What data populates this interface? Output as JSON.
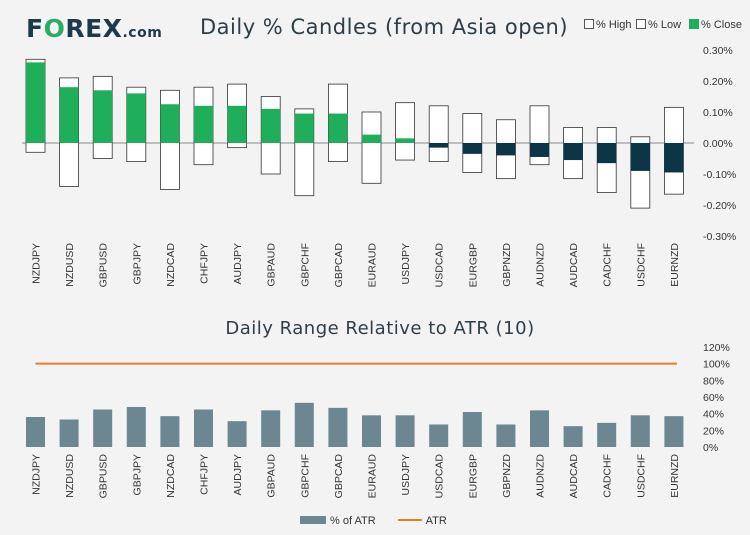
{
  "logo": {
    "part1": "F",
    "part2": "O",
    "part3": "REX",
    "part4": ".com"
  },
  "legend": {
    "high": "% High",
    "low": "% Low",
    "close": "% Close",
    "bar": "% of ATR",
    "line": "ATR"
  },
  "colors": {
    "up": "#1fae5a",
    "down": "#0c3547",
    "bar": "#6c8692",
    "atr_line": "#e67e22",
    "wick": "#ffffff"
  },
  "chart_data": [
    {
      "type": "candlestick",
      "title": "Daily % Candles (from Asia open)",
      "categories": [
        "NZDJPY",
        "NZDUSD",
        "GBPUSD",
        "GBPJPY",
        "NZDCAD",
        "CHFJPY",
        "AUDJPY",
        "GBPAUD",
        "GBPCHF",
        "GBPCAD",
        "EURAUD",
        "USDJPY",
        "USDCAD",
        "EURGBP",
        "GBPNZD",
        "AUDNZD",
        "AUDCAD",
        "CADCHF",
        "USDCHF",
        "EURNZD"
      ],
      "high": [
        0.27,
        0.21,
        0.215,
        0.18,
        0.17,
        0.18,
        0.19,
        0.15,
        0.11,
        0.19,
        0.1,
        0.13,
        0.12,
        0.095,
        0.075,
        0.12,
        0.05,
        0.05,
        0.02,
        0.115
      ],
      "low": [
        -0.03,
        -0.14,
        -0.05,
        -0.06,
        -0.15,
        -0.07,
        -0.015,
        -0.1,
        -0.17,
        -0.06,
        -0.13,
        -0.055,
        -0.06,
        -0.095,
        -0.115,
        -0.07,
        -0.115,
        -0.16,
        -0.21,
        -0.165
      ],
      "close": [
        0.26,
        0.18,
        0.17,
        0.16,
        0.125,
        0.12,
        0.12,
        0.11,
        0.095,
        0.095,
        0.027,
        0.015,
        -0.015,
        -0.035,
        -0.04,
        -0.045,
        -0.055,
        -0.065,
        -0.09,
        -0.095
      ],
      "yticks": [
        "0.30%",
        "0.20%",
        "0.10%",
        "0.00%",
        "-0.10%",
        "-0.20%",
        "-0.30%"
      ],
      "ylim": [
        -0.3,
        0.3
      ]
    },
    {
      "type": "bar",
      "title": "Daily Range Relative to ATR (10)",
      "categories": [
        "NZDJPY",
        "NZDUSD",
        "GBPUSD",
        "GBPJPY",
        "NZDCAD",
        "CHFJPY",
        "AUDJPY",
        "GBPAUD",
        "GBPCHF",
        "GBPCAD",
        "EURAUD",
        "USDJPY",
        "USDCAD",
        "EURGBP",
        "GBPNZD",
        "AUDNZD",
        "AUDCAD",
        "CADCHF",
        "USDCHF",
        "EURNZD"
      ],
      "values": [
        36,
        33,
        45,
        48,
        37,
        45,
        31,
        44,
        53,
        47,
        38,
        38,
        27,
        42,
        27,
        44,
        25,
        29,
        38,
        37
      ],
      "atr": 100,
      "yticks": [
        "120%",
        "100%",
        "80%",
        "60%",
        "40%",
        "20%",
        "0%"
      ],
      "ylim": [
        0,
        120
      ]
    }
  ]
}
